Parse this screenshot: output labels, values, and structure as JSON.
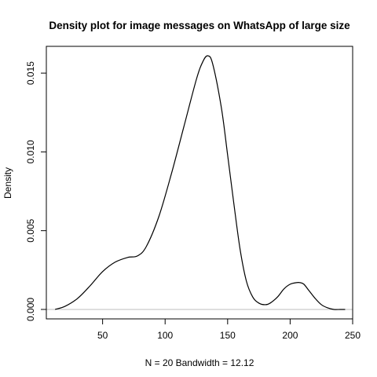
{
  "chart_data": {
    "type": "line",
    "title": "Density plot for image messages on WhatsApp of large size",
    "xlabel": "N = 20   Bandwidth = 12.12",
    "ylabel": "Density",
    "xlim": [
      5,
      250
    ],
    "ylim": [
      -0.0006,
      0.0167
    ],
    "x_ticks": [
      50,
      100,
      150,
      200,
      250
    ],
    "y_ticks": [
      0.0,
      0.005,
      0.01,
      0.015
    ],
    "x_tick_labels": [
      "50",
      "100",
      "150",
      "200",
      "250"
    ],
    "y_tick_labels": [
      "0.000",
      "0.005",
      "0.010",
      "0.015"
    ],
    "baseline": 0,
    "colors": {
      "line": "#000000",
      "baseline": "#bebebe",
      "frame": "#000000"
    },
    "series": [
      {
        "name": "density",
        "x": [
          12,
          20,
          30,
          40,
          50,
          60,
          70,
          78,
          85,
          95,
          105,
          115,
          125,
          130,
          134,
          138,
          145,
          150,
          155,
          160,
          165,
          170,
          175,
          180,
          184,
          190,
          195,
          200,
          205,
          208,
          211,
          215,
          220,
          225,
          230,
          235,
          240,
          244
        ],
        "y": [
          0.0,
          0.0002,
          0.0007,
          0.0015,
          0.0024,
          0.003,
          0.0033,
          0.0034,
          0.004,
          0.0059,
          0.0086,
          0.0116,
          0.0146,
          0.0157,
          0.0161,
          0.0156,
          0.0128,
          0.0098,
          0.0067,
          0.0038,
          0.0018,
          0.0008,
          0.0004,
          0.0003,
          0.0004,
          0.0008,
          0.0013,
          0.0016,
          0.0017,
          0.0017,
          0.0016,
          0.0012,
          0.0007,
          0.0003,
          0.0001,
          0.0,
          0.0,
          0.0
        ]
      }
    ]
  }
}
